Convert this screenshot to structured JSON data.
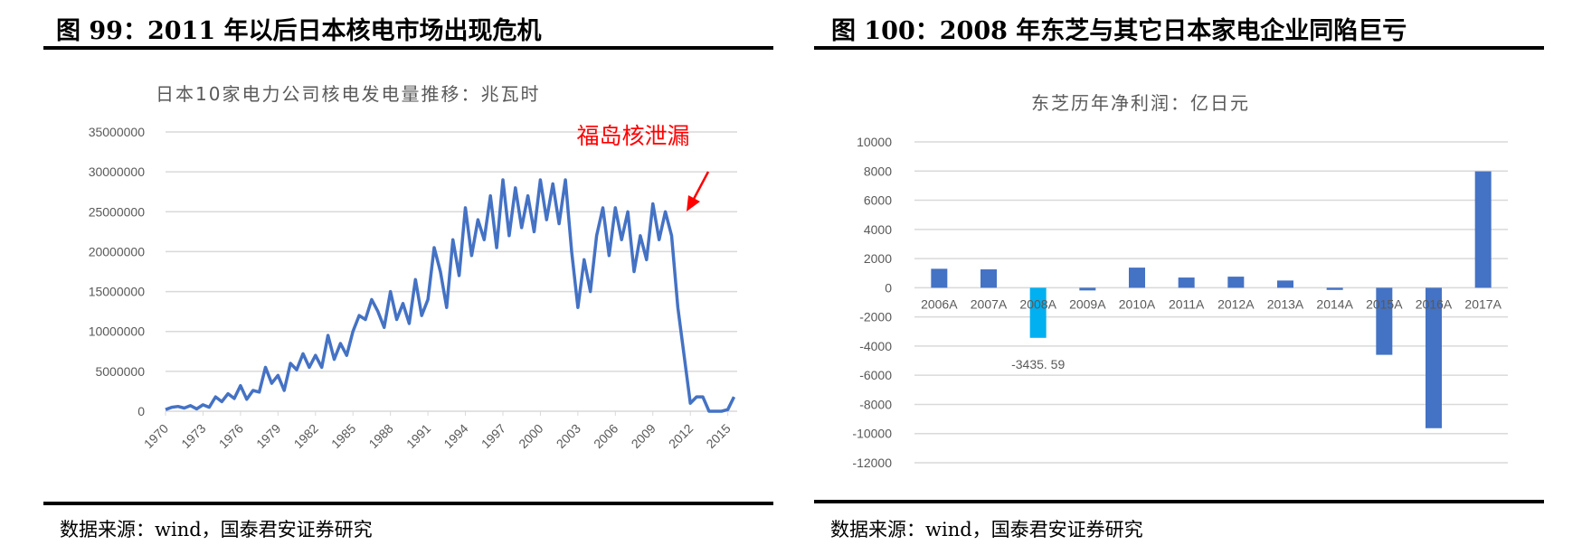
{
  "left": {
    "figure_title": "图 99：2011 年以后日本核电市场出现危机",
    "source": "数据来源：wind，国泰君安证券研究"
  },
  "right": {
    "figure_title": "图 100：2008 年东芝与其它日本家电企业同陷巨亏",
    "source": "数据来源：wind，国泰君安证券研究"
  },
  "chart_data": [
    {
      "type": "line",
      "title": "日本10家电力公司核电发电量推移：兆瓦时",
      "annotation": "福岛核泄漏",
      "annotation_color": "#ff0000",
      "line_color": "#4472c4",
      "ylim": [
        0,
        35000000
      ],
      "yticks": [
        0,
        5000000,
        10000000,
        15000000,
        20000000,
        25000000,
        30000000,
        35000000
      ],
      "xlim": [
        1970,
        2015.75
      ],
      "xticks": [
        "1970",
        "1973",
        "1976",
        "1979",
        "1982",
        "1985",
        "1988",
        "1991",
        "1994",
        "1997",
        "2000",
        "2003",
        "2006",
        "2009",
        "2012",
        "2015"
      ],
      "grid": true,
      "x": [
        1970,
        1970.5,
        1971,
        1971.5,
        1972,
        1972.5,
        1973,
        1973.5,
        1974,
        1974.5,
        1975,
        1975.5,
        1976,
        1976.5,
        1977,
        1977.5,
        1978,
        1978.5,
        1979,
        1979.5,
        1980,
        1980.5,
        1981,
        1981.5,
        1982,
        1982.5,
        1983,
        1983.5,
        1984,
        1984.5,
        1985,
        1985.5,
        1986,
        1986.5,
        1987,
        1987.5,
        1988,
        1988.5,
        1989,
        1989.5,
        1990,
        1990.5,
        1991,
        1991.5,
        1992,
        1992.5,
        1993,
        1993.5,
        1994,
        1994.5,
        1995,
        1995.5,
        1996,
        1996.5,
        1997,
        1997.5,
        1998,
        1998.5,
        1999,
        1999.5,
        2000,
        2000.5,
        2001,
        2001.5,
        2002,
        2002.5,
        2003,
        2003.5,
        2004,
        2004.5,
        2005,
        2005.5,
        2006,
        2006.5,
        2007,
        2007.5,
        2008,
        2008.5,
        2009,
        2009.5,
        2010,
        2010.5,
        2011,
        2011.5,
        2012,
        2012.5,
        2013,
        2013.5,
        2014,
        2014.5,
        2015,
        2015.5
      ],
      "values": [
        200000,
        500000,
        600000,
        400000,
        700000,
        300000,
        800000,
        500000,
        1800000,
        1200000,
        2200000,
        1600000,
        3200000,
        1500000,
        2600000,
        2400000,
        5500000,
        3500000,
        4500000,
        2600000,
        6000000,
        5200000,
        7200000,
        5500000,
        7000000,
        5500000,
        9500000,
        6500000,
        8500000,
        7000000,
        10000000,
        12000000,
        11500000,
        14000000,
        12500000,
        10500000,
        15000000,
        11500000,
        13500000,
        11000000,
        16500000,
        12000000,
        14000000,
        20500000,
        17500000,
        13000000,
        21500000,
        17000000,
        25500000,
        19500000,
        24000000,
        21500000,
        27000000,
        20500000,
        29000000,
        22000000,
        28000000,
        23000000,
        27000000,
        22500000,
        29000000,
        24000000,
        28500000,
        23500000,
        29000000,
        20000000,
        13000000,
        19000000,
        15000000,
        22000000,
        25500000,
        19500000,
        25500000,
        21500000,
        25000000,
        17500000,
        22000000,
        19000000,
        26000000,
        21500000,
        25000000,
        22000000,
        13000000,
        7000000,
        1000000,
        1800000,
        1800000,
        0,
        0,
        0,
        200000,
        1800000
      ]
    },
    {
      "type": "bar",
      "title": "东芝历年净利润：亿日元",
      "categories": [
        "2006A",
        "2007A",
        "2008A",
        "2009A",
        "2010A",
        "2011A",
        "2012A",
        "2013A",
        "2014A",
        "2015A",
        "2016A",
        "2017A"
      ],
      "values": [
        1300,
        1260,
        -3435.59,
        -185,
        1380,
        700,
        760,
        495,
        -150,
        -4600,
        -9630,
        7980
      ],
      "data_labels": {
        "2008A": "-3435. 59"
      },
      "bar_color": "#4472c4",
      "highlight_color": "#00b0f0",
      "highlight_category": "2008A",
      "ylim": [
        -12000,
        10000
      ],
      "yticks": [
        -12000,
        -10000,
        -8000,
        -6000,
        -4000,
        -2000,
        0,
        2000,
        4000,
        6000,
        8000,
        10000
      ],
      "grid": true
    }
  ]
}
